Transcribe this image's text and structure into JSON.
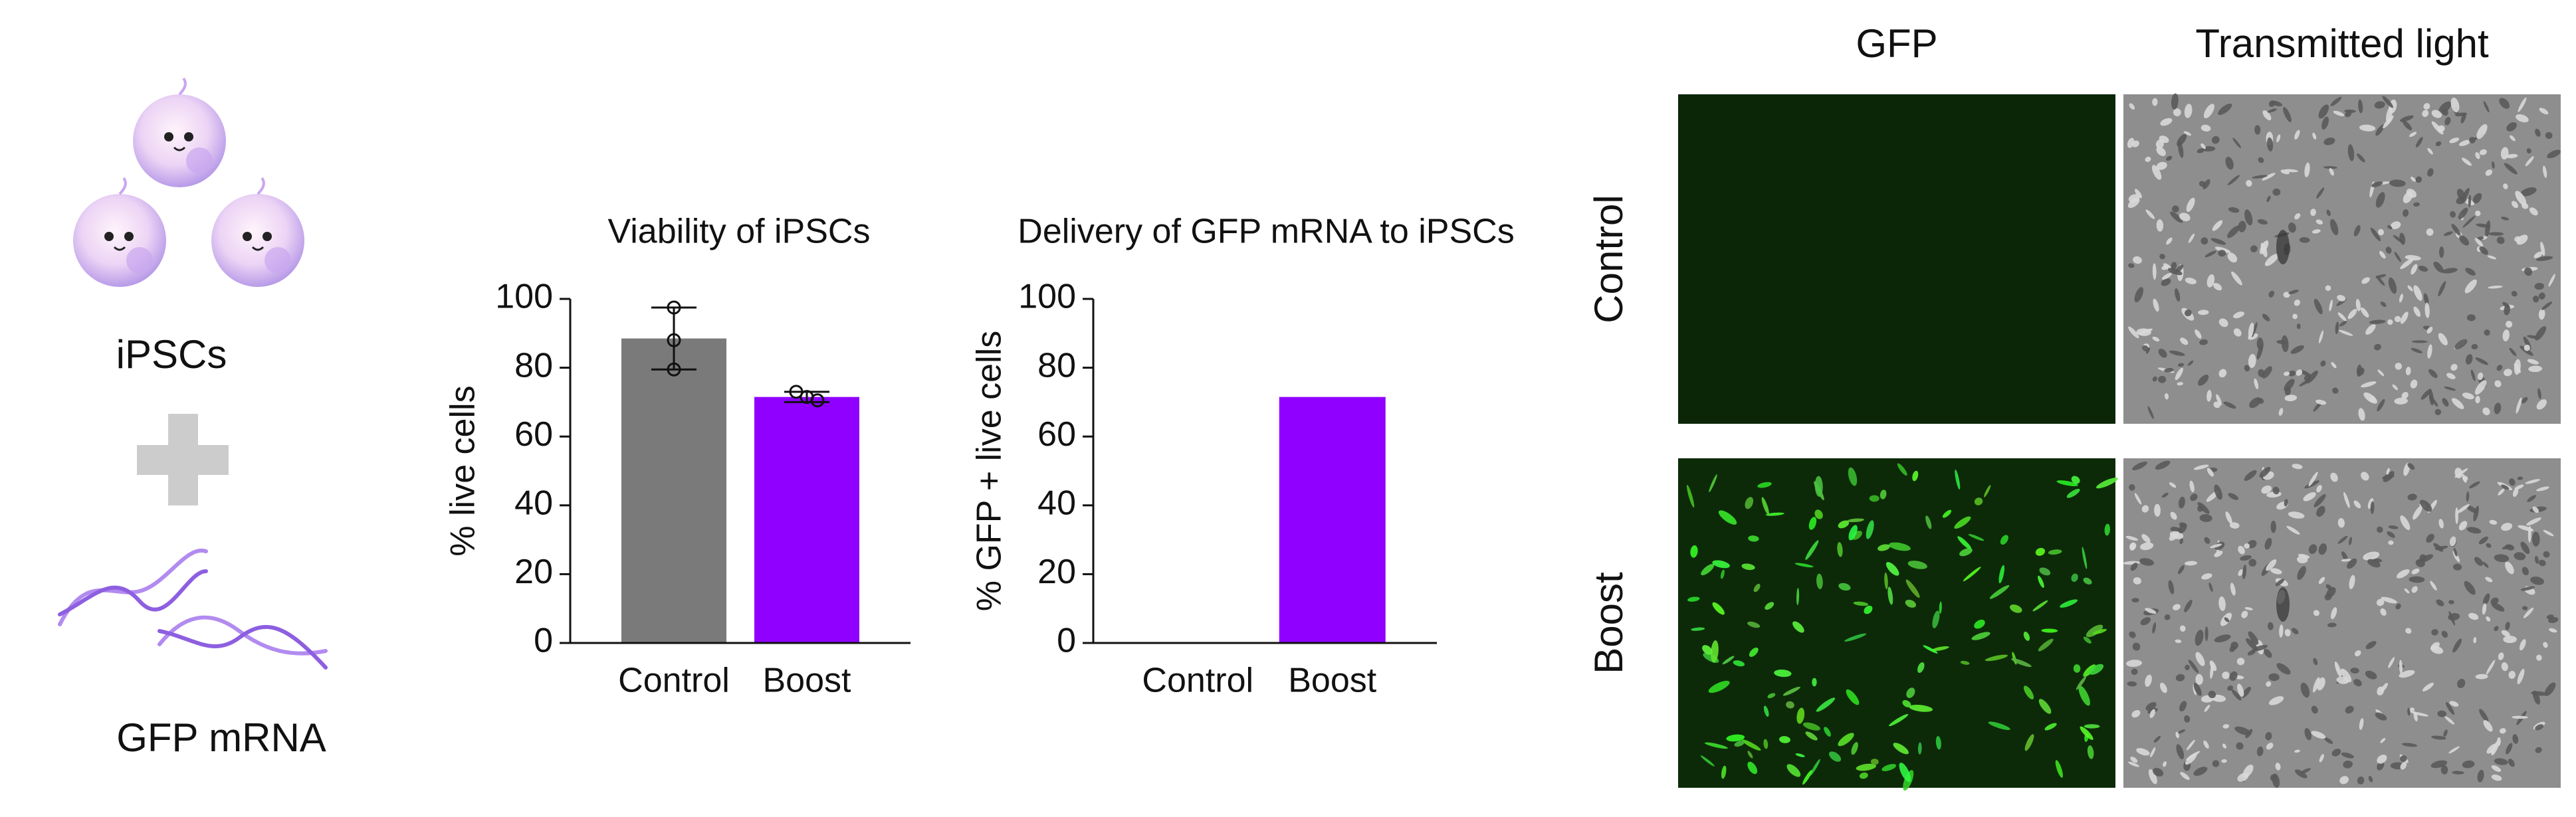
{
  "illustration": {
    "cells_label": "iPSCs",
    "mrna_label": "GFP mRNA"
  },
  "chart_data": [
    {
      "type": "bar",
      "title": "Viability of iPSCs",
      "ylabel": "% live cells",
      "categories": [
        "Control",
        "Boost"
      ],
      "values": [
        88.5,
        71.5
      ],
      "errors": [
        9,
        1.5
      ],
      "points": [
        [
          97.5,
          88,
          79.5
        ],
        [
          73,
          71.5,
          70.5
        ]
      ],
      "colors": [
        "#7a7a7a",
        "#8f00ff"
      ],
      "ylim": [
        0,
        100
      ],
      "yticks": [
        0,
        20,
        40,
        60,
        80,
        100
      ]
    },
    {
      "type": "bar",
      "title": "Delivery of GFP mRNA to iPSCs",
      "ylabel": "% GFP + live cells",
      "categories": [
        "Control",
        "Boost"
      ],
      "values": [
        0,
        71.5
      ],
      "colors": [
        "#7a7a7a",
        "#8f00ff"
      ],
      "ylim": [
        0,
        100
      ],
      "yticks": [
        0,
        20,
        40,
        60,
        80,
        100
      ]
    }
  ],
  "micrographs": {
    "columns": [
      "GFP",
      "Transmitted light"
    ],
    "rows": [
      "Control",
      "Boost"
    ]
  }
}
